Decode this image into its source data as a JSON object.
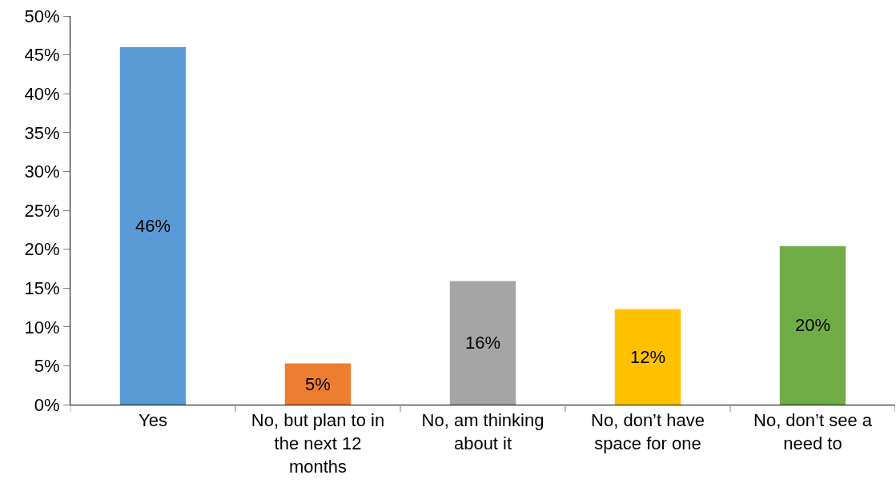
{
  "chart_data": {
    "type": "bar",
    "categories": [
      "Yes",
      "No, but plan to in the next 12 months",
      "No, am thinking about it",
      "No, don’t have space for one",
      "No, don’t see a need to"
    ],
    "values": [
      46,
      5.3,
      15.9,
      12.3,
      20.4
    ],
    "colors": [
      "#5b9bd5",
      "#ed7d31",
      "#a5a5a5",
      "#ffc000",
      "#70ad47"
    ],
    "value_labels": [
      "46%",
      "5%",
      "16%",
      "12%",
      "20%"
    ],
    "ylim": [
      0,
      50
    ],
    "yticks": [
      {
        "value": 0,
        "label": "0%"
      },
      {
        "value": 5,
        "label": "5%"
      },
      {
        "value": 10,
        "label": "10%"
      },
      {
        "value": 15,
        "label": "15%"
      },
      {
        "value": 20,
        "label": "20%"
      },
      {
        "value": 25,
        "label": "25%"
      },
      {
        "value": 30,
        "label": "30%"
      },
      {
        "value": 35,
        "label": "35%"
      },
      {
        "value": 40,
        "label": "40%"
      },
      {
        "value": 45,
        "label": "45%"
      },
      {
        "value": 50,
        "label": "50%"
      }
    ]
  }
}
